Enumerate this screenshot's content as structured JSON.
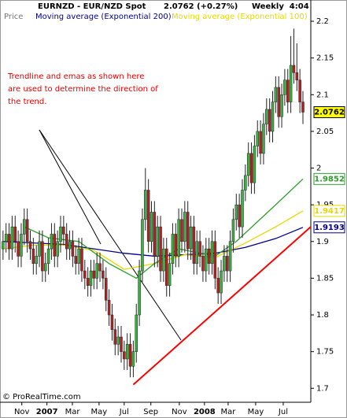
{
  "chart_data": {
    "type": "candlestick",
    "title": "EURNZD - EUR/NZD Spot",
    "price_text": "2.0762 (+0.27%)",
    "period": "Weekly  4:04",
    "axis_label": "Price",
    "annotation": [
      "Trendline and emas as shown here",
      "are used to determine the direction of",
      "the trend."
    ],
    "copyright": "© ProRealTime.com",
    "up_color": "#3cb043",
    "down_color": "#b22222",
    "xlim": [
      -1,
      101.6
    ],
    "ylim": [
      1.681,
      2.229
    ],
    "yticks": [
      1.7,
      1.75,
      1.8,
      1.85,
      1.9,
      1.95,
      2,
      2.05,
      2.1,
      2.15,
      2.2
    ],
    "xticks": [
      {
        "value": 6.2,
        "label": "Nov"
      },
      {
        "value": 14.5,
        "label": "2007"
      },
      {
        "value": 22.9,
        "label": "Mar"
      },
      {
        "value": 31.7,
        "label": "May"
      },
      {
        "value": 40,
        "label": "Jul"
      },
      {
        "value": 48.8,
        "label": "Sep"
      },
      {
        "value": 58.2,
        "label": "Nov"
      },
      {
        "value": 66.5,
        "label": "2008"
      },
      {
        "value": 74.3,
        "label": "Mar"
      },
      {
        "value": 83.4,
        "label": "May"
      },
      {
        "value": 92.5,
        "label": "Jul"
      }
    ],
    "open": [
      1.89,
      1.9,
      1.91,
      1.89,
      1.92,
      1.9,
      1.88,
      1.91,
      1.93,
      1.9,
      1.89,
      1.87,
      1.88,
      1.9,
      1.86,
      1.87,
      1.89,
      1.91,
      1.88,
      1.9,
      1.92,
      1.91,
      1.89,
      1.9,
      1.88,
      1.87,
      1.89,
      1.86,
      1.85,
      1.84,
      1.86,
      1.85,
      1.87,
      1.86,
      1.85,
      1.82,
      1.8,
      1.78,
      1.76,
      1.77,
      1.75,
      1.74,
      1.76,
      1.73,
      1.75,
      1.8,
      1.86,
      1.93,
      1.97,
      1.9,
      1.94,
      1.88,
      1.92,
      1.86,
      1.89,
      1.84,
      1.87,
      1.91,
      1.88,
      1.93,
      1.9,
      1.94,
      1.89,
      1.92,
      1.87,
      1.9,
      1.88,
      1.86,
      1.89,
      1.87,
      1.9,
      1.85,
      1.83,
      1.86,
      1.88,
      1.86,
      1.9,
      1.93,
      1.95,
      1.92,
      1.97,
      1.99,
      2.02,
      1.98,
      2.03,
      2.05,
      2.02,
      2.06,
      2.08,
      2.05,
      2.09,
      2.11,
      2.07,
      2.1,
      2.12,
      2.09,
      2.14,
      2.13,
      2.12,
      2.09
    ],
    "high": [
      1.915,
      1.925,
      1.925,
      1.935,
      1.935,
      1.915,
      1.925,
      1.945,
      1.945,
      1.915,
      1.905,
      1.895,
      1.915,
      1.915,
      1.885,
      1.905,
      1.925,
      1.925,
      1.915,
      1.935,
      1.935,
      1.925,
      1.915,
      1.915,
      1.895,
      1.905,
      1.905,
      1.875,
      1.865,
      1.875,
      1.875,
      1.885,
      1.885,
      1.875,
      1.865,
      1.835,
      1.815,
      1.795,
      1.785,
      1.785,
      1.765,
      1.775,
      1.775,
      1.765,
      1.815,
      1.875,
      1.945,
      2.0,
      1.985,
      1.955,
      1.955,
      1.935,
      1.935,
      1.905,
      1.905,
      1.885,
      1.925,
      1.925,
      1.945,
      1.945,
      1.955,
      1.955,
      1.935,
      1.935,
      1.915,
      1.915,
      1.895,
      1.905,
      1.905,
      1.915,
      1.915,
      1.865,
      1.875,
      1.895,
      1.895,
      1.915,
      1.945,
      1.965,
      1.965,
      1.985,
      2.005,
      2.035,
      2.035,
      2.045,
      2.065,
      2.065,
      2.075,
      2.095,
      2.095,
      2.105,
      2.125,
      2.125,
      2.115,
      2.135,
      2.135,
      2.18,
      2.19,
      2.17,
      2.135,
      2.105
    ],
    "low": [
      1.875,
      1.885,
      1.875,
      1.875,
      1.885,
      1.865,
      1.865,
      1.895,
      1.885,
      1.875,
      1.855,
      1.855,
      1.865,
      1.845,
      1.845,
      1.855,
      1.875,
      1.865,
      1.865,
      1.885,
      1.895,
      1.875,
      1.875,
      1.865,
      1.855,
      1.855,
      1.845,
      1.835,
      1.825,
      1.825,
      1.835,
      1.835,
      1.845,
      1.835,
      1.805,
      1.785,
      1.765,
      1.745,
      1.745,
      1.735,
      1.725,
      1.725,
      1.715,
      1.715,
      1.735,
      1.785,
      1.845,
      1.915,
      1.885,
      1.885,
      1.865,
      1.865,
      1.845,
      1.845,
      1.825,
      1.825,
      1.855,
      1.865,
      1.865,
      1.885,
      1.885,
      1.875,
      1.875,
      1.855,
      1.855,
      1.865,
      1.845,
      1.845,
      1.855,
      1.855,
      1.835,
      1.815,
      1.815,
      1.845,
      1.845,
      1.845,
      1.885,
      1.915,
      1.905,
      1.905,
      1.955,
      1.975,
      1.965,
      1.965,
      2.015,
      2.005,
      2.005,
      2.045,
      2.035,
      2.035,
      2.075,
      2.055,
      2.055,
      2.085,
      2.075,
      2.075,
      2.115,
      2.105,
      2.075,
      2.06
    ],
    "close": [
      1.9,
      1.91,
      1.89,
      1.92,
      1.9,
      1.88,
      1.91,
      1.93,
      1.9,
      1.89,
      1.87,
      1.88,
      1.9,
      1.86,
      1.87,
      1.89,
      1.91,
      1.88,
      1.9,
      1.92,
      1.91,
      1.89,
      1.9,
      1.88,
      1.87,
      1.89,
      1.86,
      1.85,
      1.84,
      1.86,
      1.85,
      1.87,
      1.86,
      1.85,
      1.82,
      1.8,
      1.78,
      1.76,
      1.77,
      1.75,
      1.74,
      1.76,
      1.73,
      1.75,
      1.8,
      1.86,
      1.93,
      1.97,
      1.9,
      1.94,
      1.88,
      1.92,
      1.86,
      1.89,
      1.84,
      1.87,
      1.91,
      1.88,
      1.93,
      1.9,
      1.94,
      1.89,
      1.92,
      1.87,
      1.9,
      1.88,
      1.86,
      1.89,
      1.87,
      1.9,
      1.85,
      1.83,
      1.86,
      1.88,
      1.86,
      1.9,
      1.93,
      1.95,
      1.92,
      1.97,
      1.99,
      2.02,
      1.98,
      2.03,
      2.05,
      2.02,
      2.06,
      2.08,
      2.05,
      2.09,
      2.11,
      2.07,
      2.1,
      2.12,
      2.09,
      2.14,
      2.13,
      2.12,
      2.09,
      2.0762
    ],
    "series": [
      {
        "name": "Moving average (Exponential 200)",
        "color": "#00008b",
        "x": [
          0,
          10,
          20,
          30,
          40,
          50,
          60,
          70,
          80,
          90,
          99
        ],
        "values": [
          1.9,
          1.898,
          1.896,
          1.89,
          1.884,
          1.88,
          1.882,
          1.884,
          1.892,
          1.904,
          1.9193
        ]
      },
      {
        "name": "Moving average (Exponential 100)",
        "color": "#e6d800",
        "x": [
          0,
          10,
          20,
          30,
          40,
          50,
          60,
          70,
          80,
          90,
          99
        ],
        "values": [
          1.89,
          1.895,
          1.895,
          1.888,
          1.862,
          1.87,
          1.882,
          1.878,
          1.898,
          1.92,
          1.9417
        ]
      },
      {
        "color": "#2e9e2e",
        "x": [
          7,
          15,
          25,
          35,
          44,
          50,
          58,
          70,
          77,
          90,
          99
        ],
        "values": [
          1.92,
          1.905,
          1.9,
          1.87,
          1.85,
          1.87,
          1.89,
          1.88,
          1.9,
          1.95,
          1.9852
        ]
      }
    ],
    "trendline": {
      "color": "#ff0000",
      "x": [
        43,
        101.6
      ],
      "values": [
        1.705,
        1.92
      ]
    }
  }
}
